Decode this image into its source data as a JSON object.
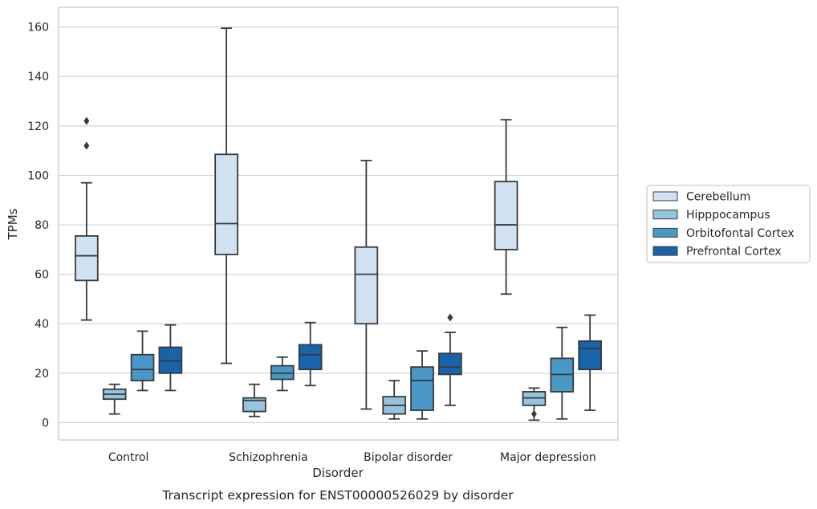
{
  "chart_data": {
    "type": "boxplot",
    "caption": "Transcript expression for ENST00000526029 by disorder",
    "xlabel": "Disorder",
    "ylabel": "TPMs",
    "ylim": [
      -7,
      168
    ],
    "yticks": [
      0,
      20,
      40,
      60,
      80,
      100,
      120,
      140,
      160
    ],
    "grid": "horizontal",
    "legend_position": "right",
    "categories": [
      "Control",
      "Schizophrenia",
      "Bipolar disorder",
      "Major depression"
    ],
    "series": [
      {
        "name": "Cerebellum",
        "color": "#d0e1f2",
        "boxes": [
          {
            "min": 41.5,
            "q1": 57.5,
            "median": 67.5,
            "q3": 75.5,
            "max": 97,
            "outliers": [
              112,
              122
            ]
          },
          {
            "min": 24,
            "q1": 68,
            "median": 80.5,
            "q3": 108.5,
            "max": 159.5,
            "outliers": []
          },
          {
            "min": 5.5,
            "q1": 40,
            "median": 60,
            "q3": 71,
            "max": 106,
            "outliers": []
          },
          {
            "min": 52,
            "q1": 70,
            "median": 80,
            "q3": 97.5,
            "max": 122.5,
            "outliers": []
          }
        ]
      },
      {
        "name": "Hipppocampus",
        "color": "#94c4df",
        "boxes": [
          {
            "min": 3.5,
            "q1": 9.5,
            "median": 11.5,
            "q3": 13.5,
            "max": 15.5,
            "outliers": []
          },
          {
            "min": 2.5,
            "q1": 4.5,
            "median": 9,
            "q3": 10,
            "max": 15.5,
            "outliers": []
          },
          {
            "min": 1.5,
            "q1": 3.5,
            "median": 7,
            "q3": 10.5,
            "max": 17,
            "outliers": []
          },
          {
            "min": 1,
            "q1": 7,
            "median": 10,
            "q3": 12.5,
            "max": 14,
            "outliers": [
              3.5
            ]
          }
        ]
      },
      {
        "name": "Orbitofontal Cortex",
        "color": "#4a98c9",
        "boxes": [
          {
            "min": 13,
            "q1": 17,
            "median": 21.5,
            "q3": 27.5,
            "max": 37,
            "outliers": []
          },
          {
            "min": 13,
            "q1": 17.5,
            "median": 20,
            "q3": 23,
            "max": 26.5,
            "outliers": []
          },
          {
            "min": 1.5,
            "q1": 5,
            "median": 17,
            "q3": 22.5,
            "max": 29,
            "outliers": []
          },
          {
            "min": 1.5,
            "q1": 12.5,
            "median": 19.5,
            "q3": 26,
            "max": 38.5,
            "outliers": []
          }
        ]
      },
      {
        "name": "Prefrontal Cortex",
        "color": "#1764ab",
        "boxes": [
          {
            "min": 13,
            "q1": 20,
            "median": 25,
            "q3": 30.5,
            "max": 39.5,
            "outliers": []
          },
          {
            "min": 15,
            "q1": 21.5,
            "median": 27.5,
            "q3": 31.5,
            "max": 40.5,
            "outliers": []
          },
          {
            "min": 7,
            "q1": 19.5,
            "median": 22.5,
            "q3": 28,
            "max": 36.5,
            "outliers": [
              42.5
            ]
          },
          {
            "min": 5,
            "q1": 21.5,
            "median": 30,
            "q3": 33,
            "max": 43.5,
            "outliers": []
          }
        ]
      }
    ]
  }
}
